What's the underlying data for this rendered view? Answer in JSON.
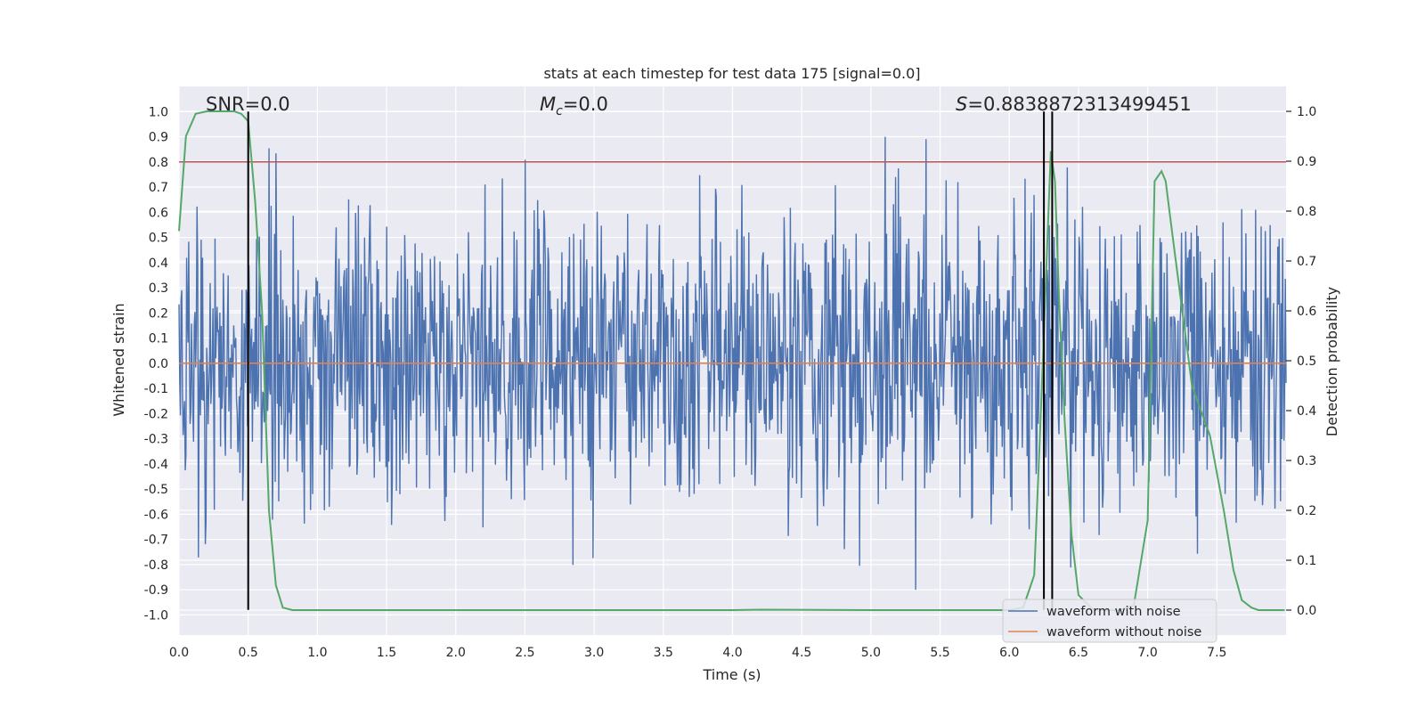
{
  "chart_data": {
    "type": "line",
    "title": "stats at each timestep for test data 175 [signal=0.0]",
    "xlabel": "Time (s)",
    "ylabel": "Whitened strain",
    "y2label": "Detection probability",
    "xlim": [
      0.0,
      8.0
    ],
    "ylim": [
      -1.08,
      1.1
    ],
    "y2lim": [
      -0.05,
      1.05
    ],
    "xticks": [
      0.0,
      0.5,
      1.0,
      1.5,
      2.0,
      2.5,
      3.0,
      3.5,
      4.0,
      4.5,
      5.0,
      5.5,
      6.0,
      6.5,
      7.0,
      7.5
    ],
    "xtick_labels": [
      "0.0",
      "0.5",
      "1.0",
      "1.5",
      "2.0",
      "2.5",
      "3.0",
      "3.5",
      "4.0",
      "4.5",
      "5.0",
      "5.5",
      "6.0",
      "6.5",
      "7.0",
      "7.5"
    ],
    "yticks": [
      1.0,
      0.9,
      0.8,
      0.7,
      0.6,
      0.5,
      0.4,
      0.3,
      0.2,
      0.1,
      0.0,
      -0.1,
      -0.2,
      -0.3,
      -0.4,
      -0.5,
      -0.6,
      -0.7,
      -0.8,
      -0.9,
      -1.0
    ],
    "ytick_labels": [
      "1.0",
      "0.9",
      "0.8",
      "0.7",
      "0.6",
      "0.5",
      "0.4",
      "0.3",
      "0.2",
      "0.1",
      "0.0",
      "-0.1",
      "-0.2",
      "-0.3",
      "-0.4",
      "-0.5",
      "-0.6",
      "-0.7",
      "-0.8",
      "-0.9",
      "-1.0"
    ],
    "y2ticks": [
      1.0,
      0.9,
      0.8,
      0.7,
      0.6,
      0.5,
      0.4,
      0.3,
      0.2,
      0.1,
      0.0
    ],
    "y2tick_labels": [
      "1.0",
      "0.9",
      "0.8",
      "0.7",
      "0.6",
      "0.5",
      "0.4",
      "0.3",
      "0.2",
      "0.1",
      "0.0"
    ],
    "annotations": {
      "snr": "SNR=0.0",
      "mc_symbol": "M",
      "mc_sub": "c",
      "mc_value": "=0.0",
      "s_symbol": "S",
      "s_value": "=0.8838872313499451"
    },
    "legend": {
      "position": "lower-right",
      "entries": [
        "waveform with noise",
        "waveform without noise"
      ]
    },
    "series": [
      {
        "name": "waveform with noise",
        "color": "#4c72b0",
        "description": "dense whitened noise, roughly symmetric about 0, typical extent ±0.4, peaks to ±0.9",
        "seed": 175,
        "n_samples": 1600,
        "typical_amplitude": 0.4,
        "peak_amplitude": 0.9
      },
      {
        "name": "waveform without noise",
        "color": "#dd8452",
        "x": [
          0.0,
          8.0
        ],
        "y": [
          0.0,
          0.0
        ]
      },
      {
        "name": "detection probability",
        "color": "#55a868",
        "axis": "right",
        "x": [
          0.0,
          0.05,
          0.12,
          0.2,
          0.3,
          0.4,
          0.45,
          0.5,
          0.55,
          0.6,
          0.65,
          0.7,
          0.75,
          0.82,
          1.0,
          2.0,
          3.0,
          4.0,
          4.2,
          5.0,
          6.0,
          6.1,
          6.18,
          6.22,
          6.26,
          6.3,
          6.33,
          6.36,
          6.4,
          6.45,
          6.5,
          6.6,
          6.7,
          6.8,
          6.9,
          7.0,
          7.05,
          7.1,
          7.13,
          7.18,
          7.25,
          7.32,
          7.45,
          7.55,
          7.62,
          7.68,
          7.75,
          7.8,
          7.85,
          7.99
        ],
        "y": [
          0.76,
          0.95,
          0.995,
          1.0,
          1.0,
          1.0,
          0.995,
          0.98,
          0.82,
          0.6,
          0.2,
          0.05,
          0.005,
          0.0,
          0.0,
          0.0,
          0.0,
          0.0,
          0.001,
          0.0,
          0.0,
          0.005,
          0.07,
          0.34,
          0.63,
          0.92,
          0.86,
          0.62,
          0.38,
          0.15,
          0.03,
          0.002,
          0.0,
          0.0,
          0.01,
          0.18,
          0.86,
          0.88,
          0.86,
          0.75,
          0.6,
          0.45,
          0.35,
          0.2,
          0.08,
          0.02,
          0.005,
          0.0,
          0.0,
          0.0
        ]
      }
    ],
    "horizontal_lines": [
      {
        "name": "threshold-line",
        "color": "#c44e52",
        "y": 0.8
      }
    ],
    "vertical_lines": [
      {
        "name": "peak-marker-1",
        "color": "#000000",
        "x": 0.5,
        "y_from": -0.98,
        "y_to": 1.0
      },
      {
        "name": "peak-marker-2",
        "color": "#000000",
        "x": 6.25,
        "y_from": -0.98,
        "y_to": 1.0
      },
      {
        "name": "peak-marker-3",
        "color": "#000000",
        "x": 6.31,
        "y_from": -0.98,
        "y_to": 1.0
      }
    ]
  }
}
